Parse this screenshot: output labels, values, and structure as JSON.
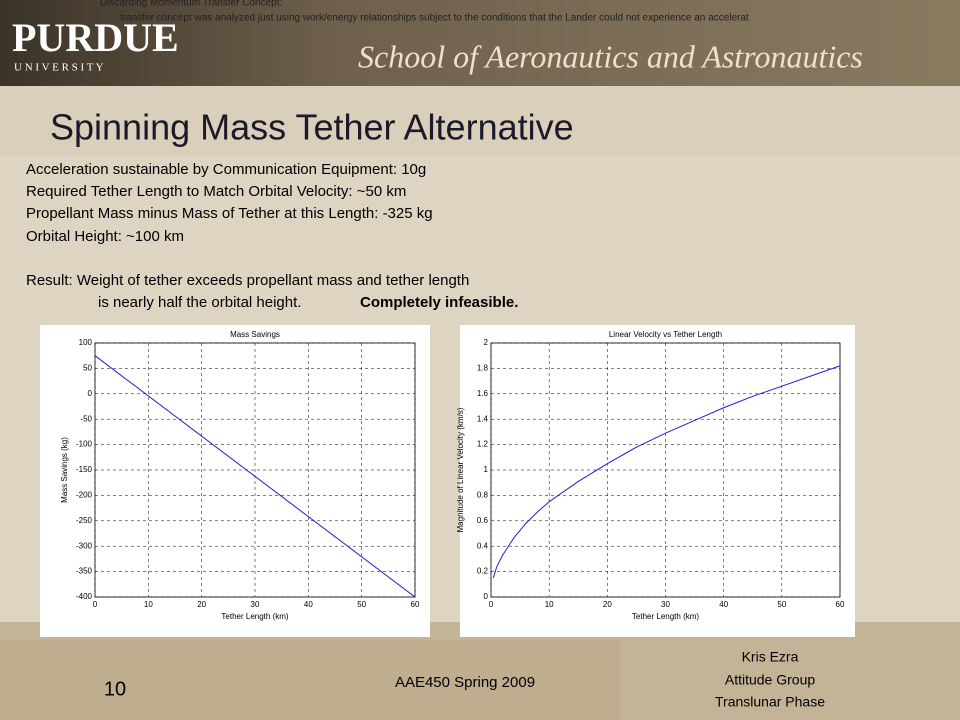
{
  "header": {
    "top_line_1": "Discarding Momentum Transfer Concept:",
    "top_line_2": "transfer concept was analyzed just using work/energy relationships subject to the conditions that the Lander could not experience an accelerat",
    "logo": "PURDUE",
    "logo_sub": "U N I V E R S I T Y",
    "school": "School of Aeronautics and Astronautics"
  },
  "title": "Spinning Mass Tether Alternative",
  "body": [
    "Acceleration sustainable by Communication Equipment: 10g",
    "Required Tether Length to Match Orbital Velocity: ~50 km",
    "Propellant Mass minus Mass of Tether at this Length:  -325 kg",
    "Orbital Height: ~100 km"
  ],
  "result_line_1": "Result:  Weight of tether exceeds propellant mass and tether length",
  "result_line_2": "is nearly half the orbital height.",
  "result_bold": "Completely infeasible.",
  "chart_data": [
    {
      "type": "line",
      "title": "Mass Savings",
      "xlabel": "Tether Length (km)",
      "ylabel": "Mass Savings (kg)",
      "x": [
        0,
        60
      ],
      "values": [
        75,
        -400
      ],
      "color": "#1f1fd0",
      "xlim": [
        0,
        60
      ],
      "ylim": [
        -400,
        100
      ],
      "xticks": [
        0,
        10,
        20,
        30,
        40,
        50,
        60
      ],
      "yticks": [
        -400,
        -350,
        -300,
        -250,
        -200,
        -150,
        -100,
        -50,
        0,
        50,
        100
      ],
      "grid": true
    },
    {
      "type": "line",
      "title": "Linear Velocity vs Tether Length",
      "xlabel": "Tether Length (km)",
      "ylabel": "Magnitude of Linear Velocity (km/s)",
      "x": [
        0.4,
        1,
        2,
        4,
        6,
        8,
        10,
        15,
        20,
        25,
        30,
        35,
        40,
        45,
        50,
        55,
        60
      ],
      "values": [
        0.15,
        0.24,
        0.33,
        0.47,
        0.58,
        0.67,
        0.75,
        0.91,
        1.05,
        1.18,
        1.29,
        1.39,
        1.49,
        1.58,
        1.66,
        1.74,
        1.82
      ],
      "color": "#1f1fd0",
      "xlim": [
        0,
        60
      ],
      "ylim": [
        0,
        2
      ],
      "xticks": [
        0,
        10,
        20,
        30,
        40,
        50,
        60
      ],
      "yticks": [
        0,
        0.2,
        0.4,
        0.6,
        0.8,
        1,
        1.2,
        1.4,
        1.6,
        1.8,
        2
      ],
      "grid": true
    }
  ],
  "footer": {
    "page_number": "10",
    "course": "AAE450 Spring 2009",
    "author": [
      "Kris Ezra",
      "Attitude Group",
      "Translunar Phase"
    ]
  }
}
